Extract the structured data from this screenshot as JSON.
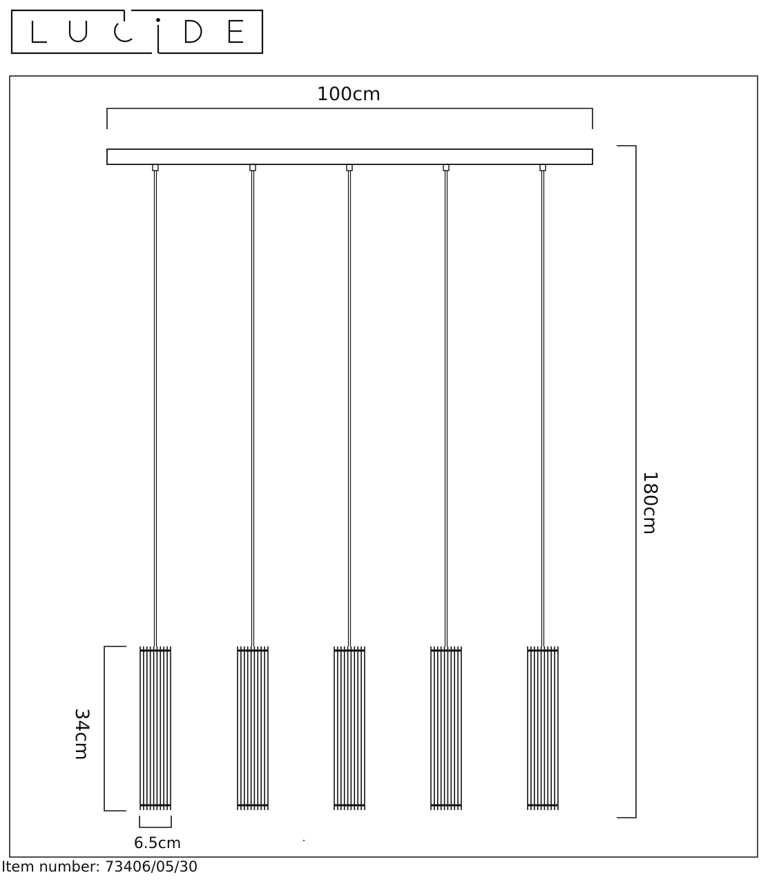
{
  "brand": {
    "logo_text": "LUCIDE"
  },
  "dimensions": {
    "width": "100cm",
    "height": "180cm",
    "shade_height": "34cm",
    "shade_diameter": "6.5cm"
  },
  "footer": {
    "item_number": "Item number: 73406/05/30"
  },
  "colors": {
    "line": "#111111",
    "background": "#ffffff"
  }
}
